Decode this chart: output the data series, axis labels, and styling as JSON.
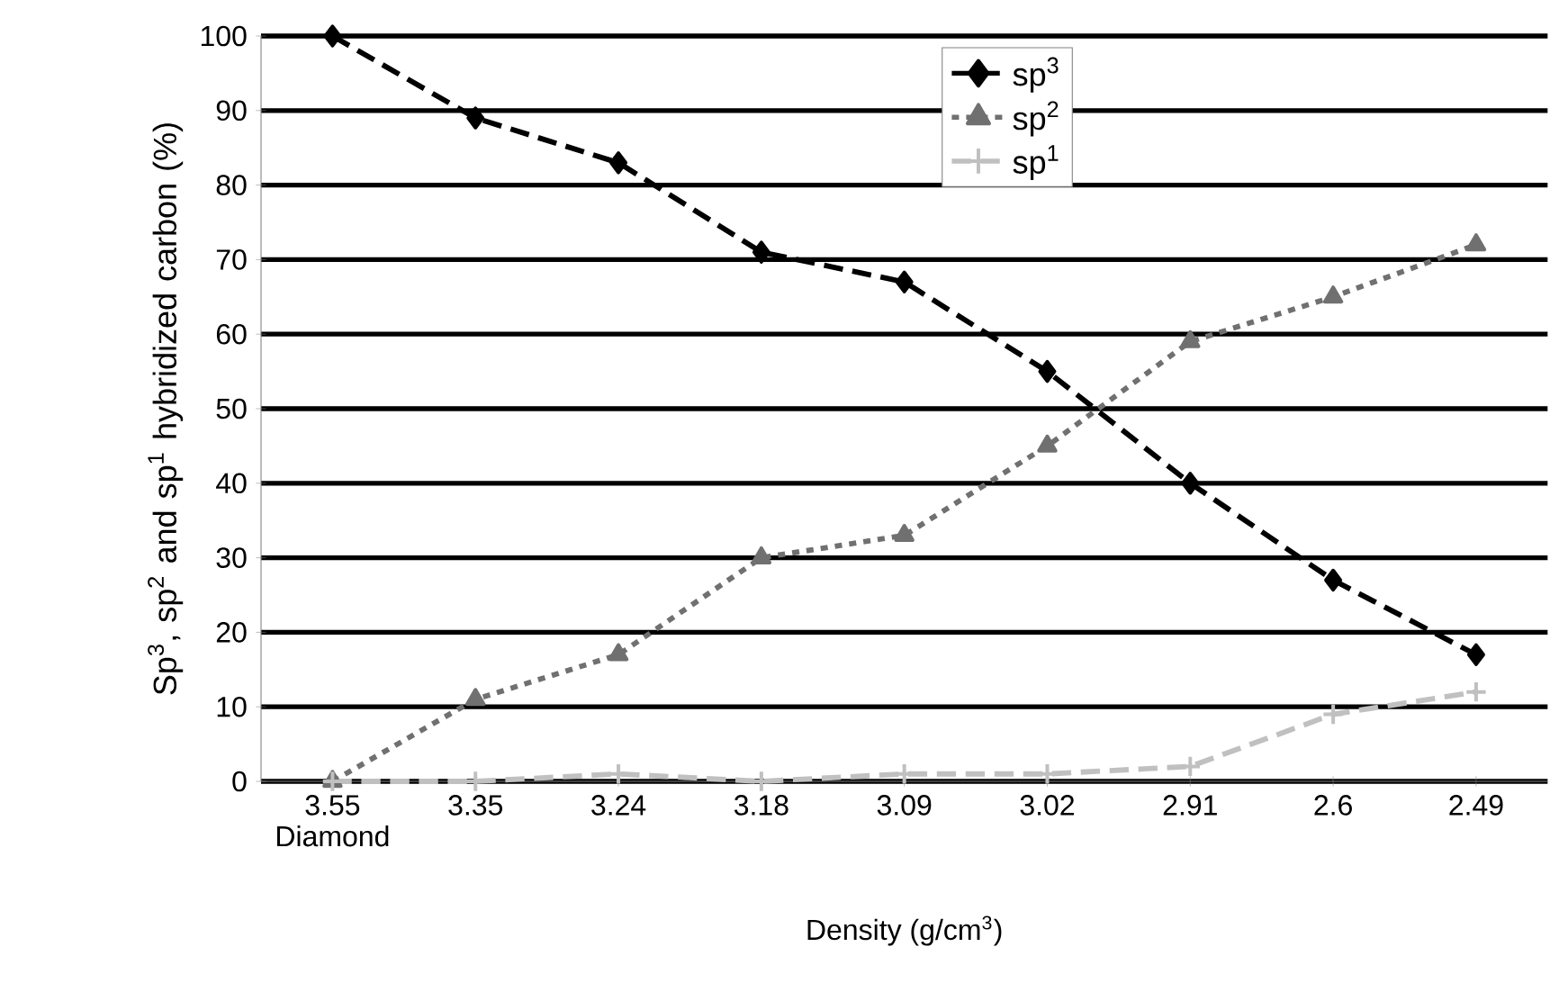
{
  "chart_data": {
    "type": "line",
    "xlabel": "Density (g/cm$^{3}$)",
    "ylabel": "Sp$^{3}$, sp$^{2}$ and sp$^{1}$ hybridized carbon (%)",
    "categories": [
      "3.55 Diamond",
      "3.35",
      "3.24",
      "3.18",
      "3.09",
      "3.02",
      "2.91",
      "2.6",
      "2.49"
    ],
    "series": [
      {
        "name": "sp$^{3}$",
        "color": "#000000",
        "marker": "diamond",
        "line_style": "dashed",
        "values": [
          100,
          89,
          83,
          71,
          67,
          55,
          40,
          27,
          17
        ]
      },
      {
        "name": "sp$^{2}$",
        "color": "#707070",
        "marker": "triangle",
        "line_style": "dotted",
        "values": [
          0,
          11,
          17,
          30,
          33,
          45,
          59,
          65,
          72
        ]
      },
      {
        "name": "sp$^{1}$",
        "color": "#c0c0c0",
        "marker": "cross",
        "line_style": "dashed",
        "values": [
          0,
          0,
          1,
          0,
          1,
          1,
          2,
          9,
          12
        ]
      }
    ],
    "ylim": [
      0,
      100
    ],
    "yticks": [
      0,
      10,
      20,
      30,
      40,
      50,
      60,
      70,
      80,
      90,
      100
    ],
    "grid": "y",
    "legend": "top"
  }
}
